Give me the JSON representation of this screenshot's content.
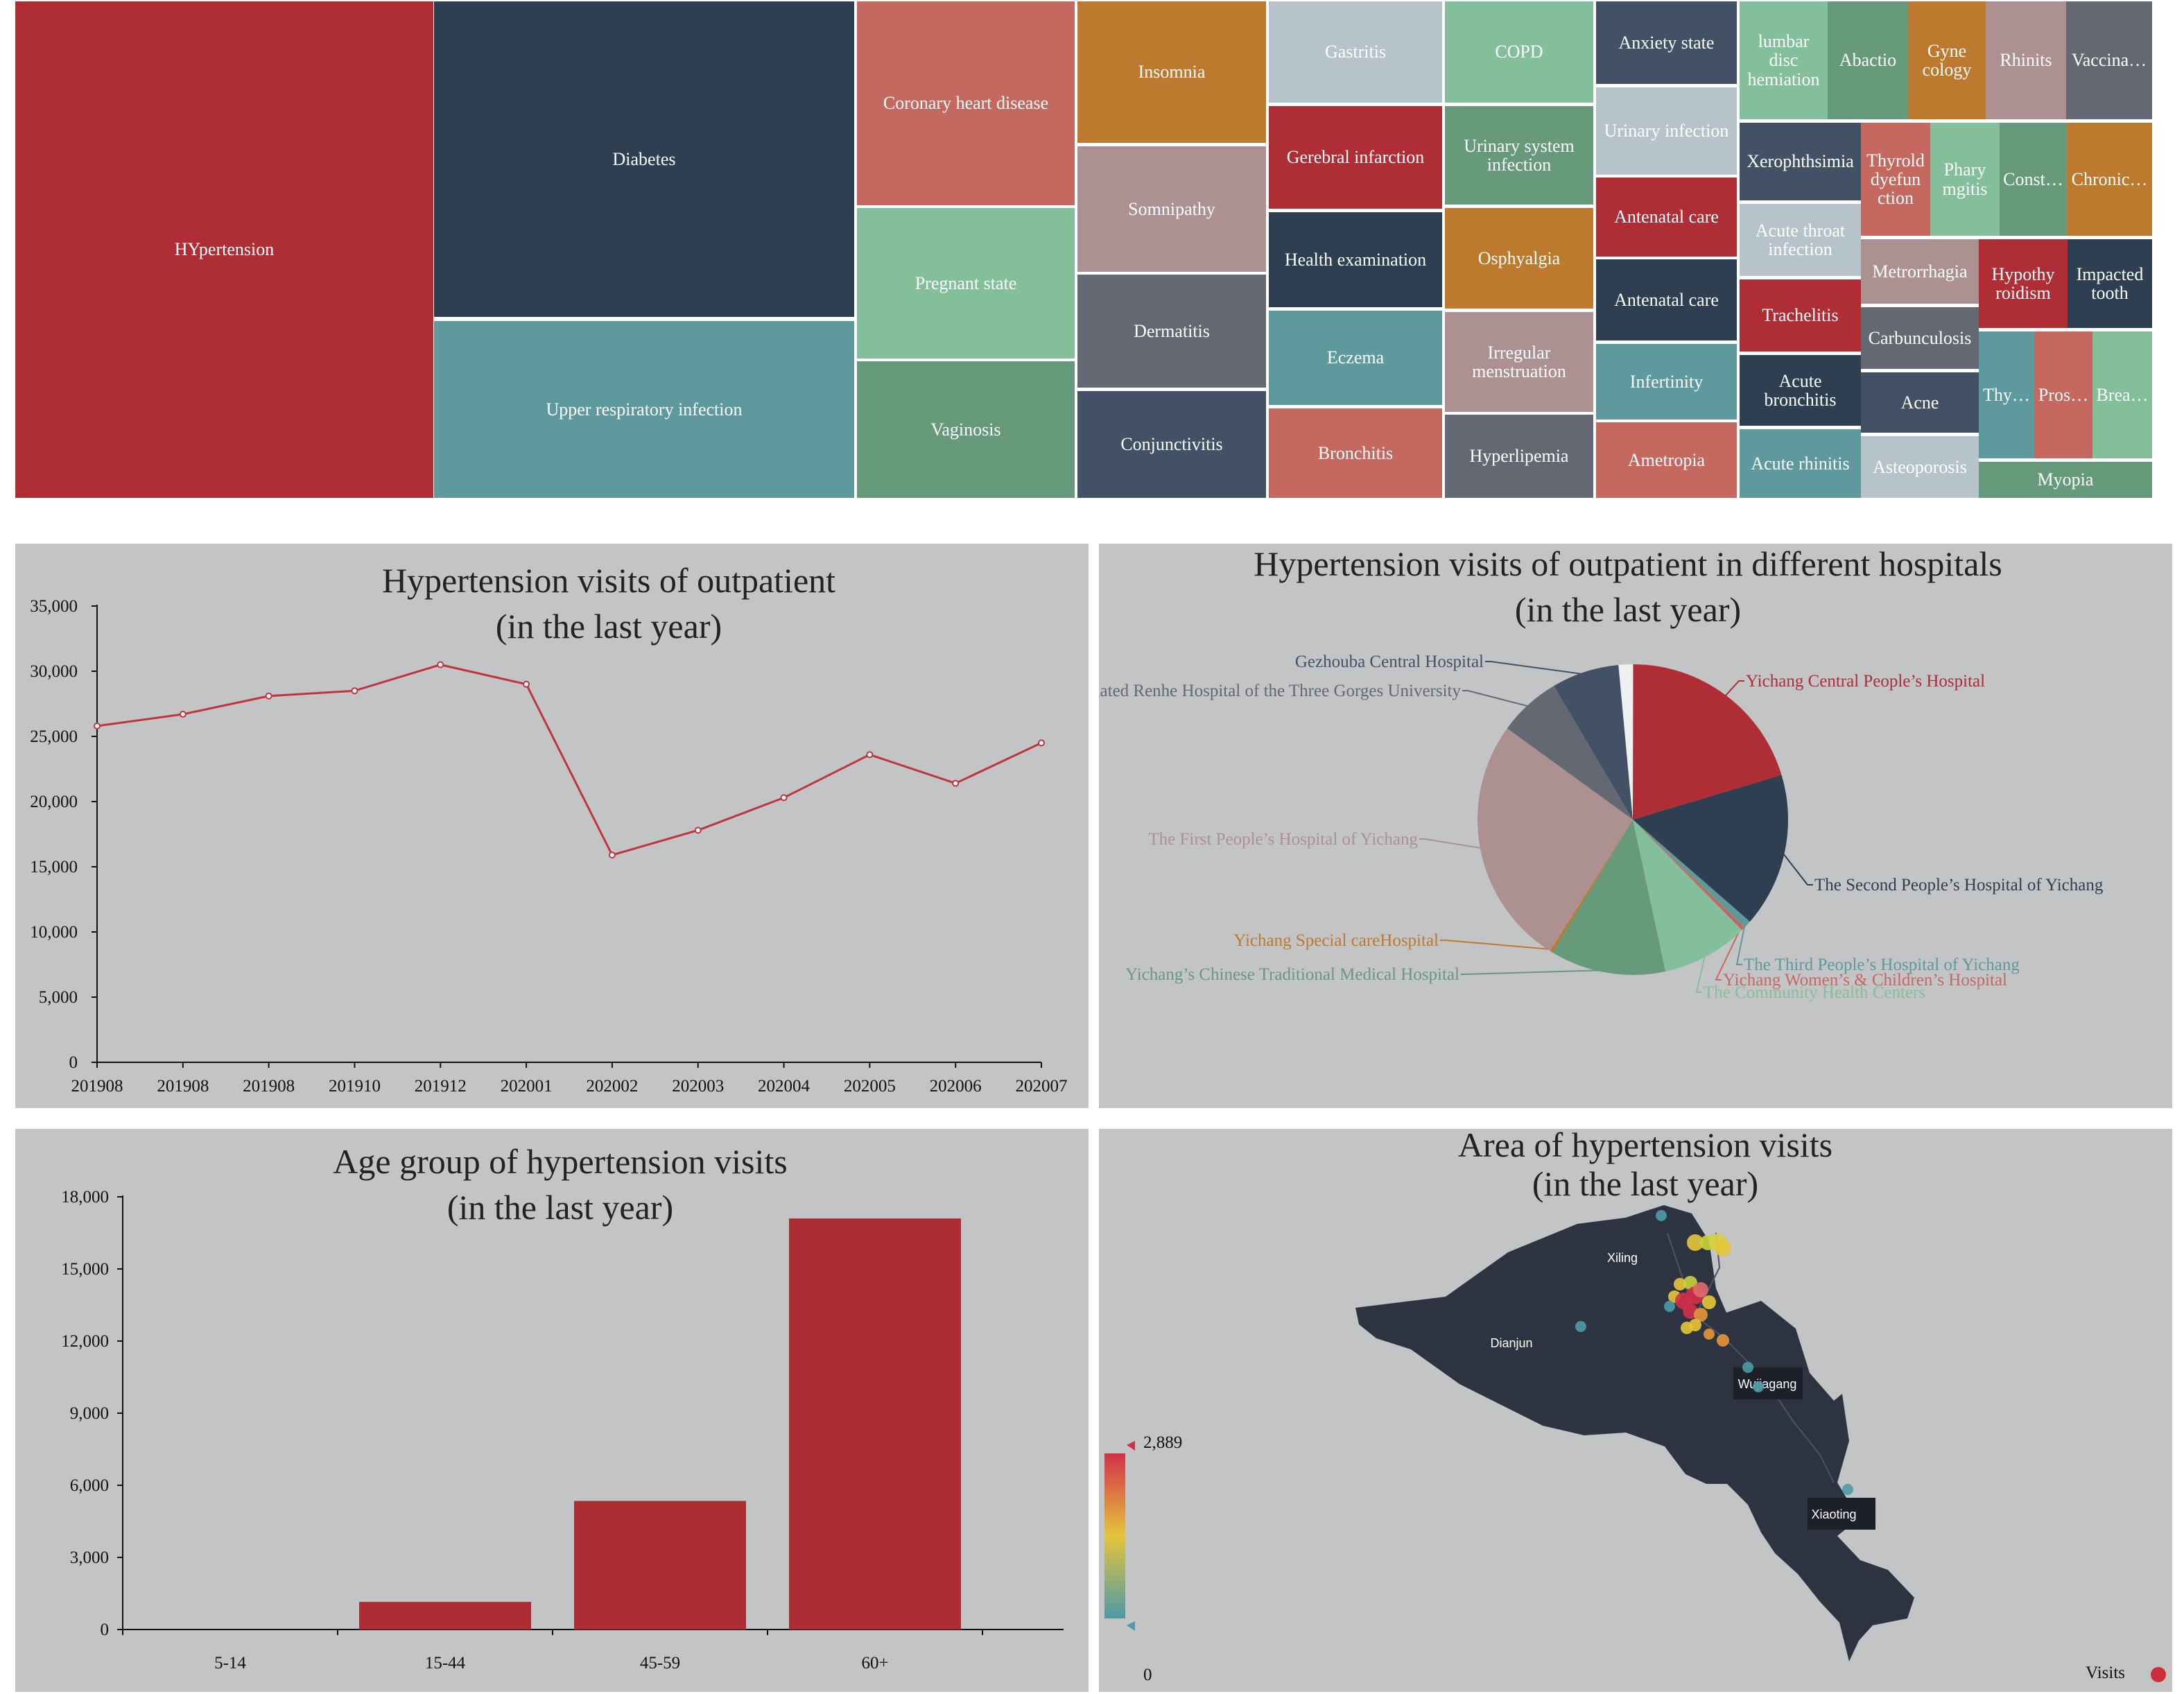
{
  "treemap": {
    "cells": [
      {
        "label": "HYpertension",
        "color": "#af2d35"
      },
      {
        "label": "Diabetes",
        "color": "#2f3f52"
      },
      {
        "label": "Upper respiratory infection",
        "color": "#5e999d"
      },
      {
        "label": "Coronary heart disease",
        "color": "#c56960"
      },
      {
        "label": "Pregnant state",
        "color": "#84bf9c"
      },
      {
        "label": "Vaginosis",
        "color": "#679a7a"
      },
      {
        "label": "Insomnia",
        "color": "#bd7a2f"
      },
      {
        "label": "Somnipathy",
        "color": "#ad9190"
      },
      {
        "label": "Dermatitis",
        "color": "#636872"
      },
      {
        "label": "Conjunctivitis",
        "color": "#435166"
      },
      {
        "label": "Gastritis",
        "color": "#b7c3ca"
      },
      {
        "label": "Gerebral infarction",
        "color": "#af2d35"
      },
      {
        "label": "Health examination",
        "color": "#2f3f52"
      },
      {
        "label": "Eczema",
        "color": "#5e999d"
      },
      {
        "label": "Bronchitis",
        "color": "#c56960"
      },
      {
        "label": "COPD",
        "color": "#84bf9c"
      },
      {
        "label": "Urinary system infection",
        "color": "#679a7a"
      },
      {
        "label": "Osphyalgia",
        "color": "#bd7a2f"
      },
      {
        "label": "Irregular menstruation",
        "color": "#ad9190"
      },
      {
        "label": "Hyperlipemia",
        "color": "#636872"
      },
      {
        "label": "Anxiety state",
        "color": "#435166"
      },
      {
        "label": "Urinary infection",
        "color": "#b7c3ca"
      },
      {
        "label": "Antenatal care",
        "color": "#af2d35"
      },
      {
        "label": "Antenatal care",
        "color": "#2f3f52"
      },
      {
        "label": "Infertinity",
        "color": "#5e999d"
      },
      {
        "label": "Ametropia",
        "color": "#c56960"
      },
      {
        "label": "lumbar disc hemiation",
        "color": "#84bf9c"
      },
      {
        "label": "Abactio",
        "color": "#679a7a"
      },
      {
        "label": "Gyne cology",
        "color": "#bd7a2f"
      },
      {
        "label": "Rhinits",
        "color": "#ad9190"
      },
      {
        "label": "Vaccina…",
        "color": "#636872"
      },
      {
        "label": "Xerophthsimia",
        "color": "#435166"
      },
      {
        "label": "Thyrold dyefun ction",
        "color": "#c56960"
      },
      {
        "label": "Phary mgitis",
        "color": "#84bf9c"
      },
      {
        "label": "Const…",
        "color": "#679a7a"
      },
      {
        "label": "Chronic…",
        "color": "#bd7a2f"
      },
      {
        "label": "Acute throat infection",
        "color": "#b7c3ca"
      },
      {
        "label": "Trachelitis",
        "color": "#af2d35"
      },
      {
        "label": "Acute bronchitis",
        "color": "#2f3f52"
      },
      {
        "label": "Acute rhinitis",
        "color": "#5e999d"
      },
      {
        "label": "Metrorrhagia",
        "color": "#ad9190"
      },
      {
        "label": "Hypothy roidism",
        "color": "#af2d35"
      },
      {
        "label": "Impacted tooth",
        "color": "#2f3f52"
      },
      {
        "label": "Carbunculosis",
        "color": "#636872"
      },
      {
        "label": "Acne",
        "color": "#435166"
      },
      {
        "label": "Thy…",
        "color": "#5e999d"
      },
      {
        "label": "Pros…",
        "color": "#c56960"
      },
      {
        "label": "Brea…",
        "color": "#84bf9c"
      },
      {
        "label": "Asteoporosis",
        "color": "#b7c3ca"
      },
      {
        "label": "Myopia",
        "color": "#679a7a"
      }
    ]
  },
  "chart_data": [
    {
      "type": "line",
      "title": "Hypertension visits of outpatient",
      "subtitle": "(in the last year)",
      "x": [
        "201908",
        "201908",
        "201908",
        "201910",
        "201912",
        "202001",
        "202002",
        "202003",
        "202004",
        "202005",
        "202006",
        "202007"
      ],
      "values": [
        25800,
        26700,
        28100,
        28500,
        30500,
        29000,
        15900,
        17800,
        20300,
        23600,
        21400,
        24500
      ],
      "ylim": [
        0,
        35000
      ],
      "yticks": [
        "0",
        "5,000",
        "10,000",
        "15,000",
        "20,000",
        "25,000",
        "30,000",
        "35,000"
      ],
      "grid": false,
      "color": "#c0343c"
    },
    {
      "type": "pie",
      "title": "Hypertension visits of outpatient in different hospitals",
      "subtitle": "(in the last year)",
      "slices": [
        {
          "label": "Yichang Central People’s Hospital",
          "value": 20.3,
          "color": "#af2d35"
        },
        {
          "label": "The Second People’s Hospital of Yichang",
          "value": 16.0,
          "color": "#2f3f52"
        },
        {
          "label": "The Third People’s Hospital of Yichang",
          "value": 0.8,
          "color": "#5e999d"
        },
        {
          "label": "Yichang Women’s & Children’s Hospital",
          "value": 0.4,
          "color": "#c56960"
        },
        {
          "label": "The Community Health Centers",
          "value": 9.0,
          "color": "#84bf9c"
        },
        {
          "label": "Yichang’s Chinese Traditional Medical Hospital",
          "value": 12.0,
          "color": "#679a7a"
        },
        {
          "label": "Yichang Special careHospital",
          "value": 0.3,
          "color": "#bd7a2f"
        },
        {
          "label": "The First People’s Hospital of Yichang",
          "value": 26.0,
          "color": "#ad9190"
        },
        {
          "label": "Affiliated Renhe Hospital of the Three Gorges University",
          "value": 6.5,
          "color": "#636872"
        },
        {
          "label": "Gezhouba Central Hospital",
          "value": 7.0,
          "color": "#435166"
        },
        {
          "label": "",
          "value": 1.5,
          "color": "#eef0f2"
        }
      ]
    },
    {
      "type": "bar",
      "title": "Age group of hypertension visits",
      "subtitle": "(in the last year)",
      "categories": [
        "5-14",
        "15-44",
        "45-59",
        "60+"
      ],
      "values": [
        0,
        1150,
        5350,
        17100
      ],
      "ylim": [
        0,
        18000
      ],
      "yticks": [
        "0",
        "3,000",
        "6,000",
        "9,000",
        "12,000",
        "15,000",
        "18,000"
      ],
      "color": "#ad2d35"
    }
  ],
  "map": {
    "title": "Area of hypertension visits",
    "subtitle": "(in the last year)",
    "districts": [
      "Xiling",
      "Dianjun",
      "Wujiagang",
      "Xiaoting"
    ],
    "legend": {
      "max": "2,889",
      "min": "0",
      "series": "Visits",
      "series_color": "#d02c3a"
    }
  }
}
